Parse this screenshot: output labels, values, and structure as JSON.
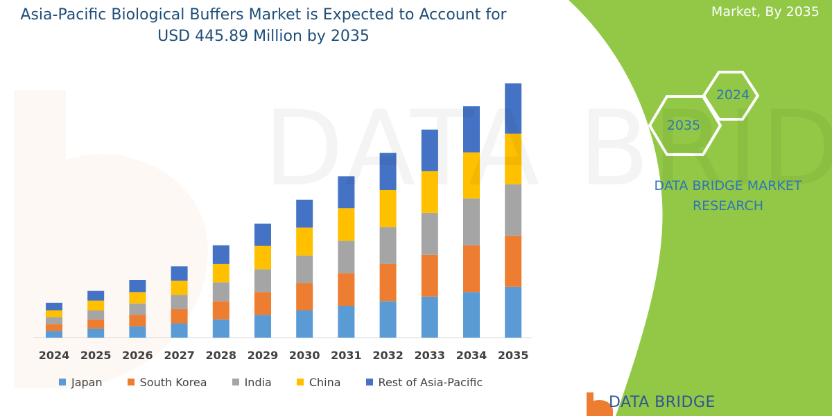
{
  "header": {
    "title_line1": "Asia-Pacific Biological Buffers Market is Expected to Account for",
    "title_line2": "USD 445.89 Million by 2035",
    "corner_text": "Market, By 2035"
  },
  "brand": {
    "line1": "DATA BRIDGE MARKET",
    "line2": "RESEARCH",
    "hex_year_top": "2024",
    "hex_year_bottom": "2035",
    "logo_text": "DATA BRIDGE",
    "watermark": "DATA BRIDGE"
  },
  "colors": {
    "accent_green": "#92c846",
    "japan": "#5b9bd5",
    "south_korea": "#ed7d31",
    "india": "#a5a5a5",
    "china": "#ffc000",
    "rest": "#4472c4"
  },
  "chart_data": {
    "type": "bar",
    "stacked": true,
    "title": "Asia-Pacific Biological Buffers Market is Expected to Account for USD 445.89 Million by 2035",
    "categories": [
      "2024",
      "2025",
      "2026",
      "2027",
      "2028",
      "2029",
      "2030",
      "2031",
      "2032",
      "2033",
      "2034",
      "2035"
    ],
    "series": [
      {
        "name": "Japan",
        "color": "#5b9bd5",
        "values": [
          12,
          16,
          20,
          25,
          32,
          40,
          48,
          56,
          64,
          72,
          80,
          89
        ]
      },
      {
        "name": "South Korea",
        "color": "#ed7d31",
        "values": [
          12,
          16,
          20,
          25,
          32,
          40,
          48,
          57,
          65,
          73,
          82,
          90
        ]
      },
      {
        "name": "India",
        "color": "#a5a5a5",
        "values": [
          12,
          16,
          20,
          25,
          33,
          40,
          48,
          57,
          65,
          74,
          82,
          90
        ]
      },
      {
        "name": "China",
        "color": "#ffc000",
        "values": [
          12,
          17,
          20,
          25,
          32,
          41,
          49,
          57,
          65,
          73,
          81,
          89
        ]
      },
      {
        "name": "Rest of Asia-Pacific",
        "color": "#4472c4",
        "values": [
          13,
          17,
          21,
          25,
          33,
          39,
          49,
          56,
          65,
          73,
          81,
          88
        ]
      }
    ],
    "xlabel": "",
    "ylabel": "",
    "ylim": [
      0,
      450
    ],
    "grid": false,
    "legend_position": "bottom"
  }
}
